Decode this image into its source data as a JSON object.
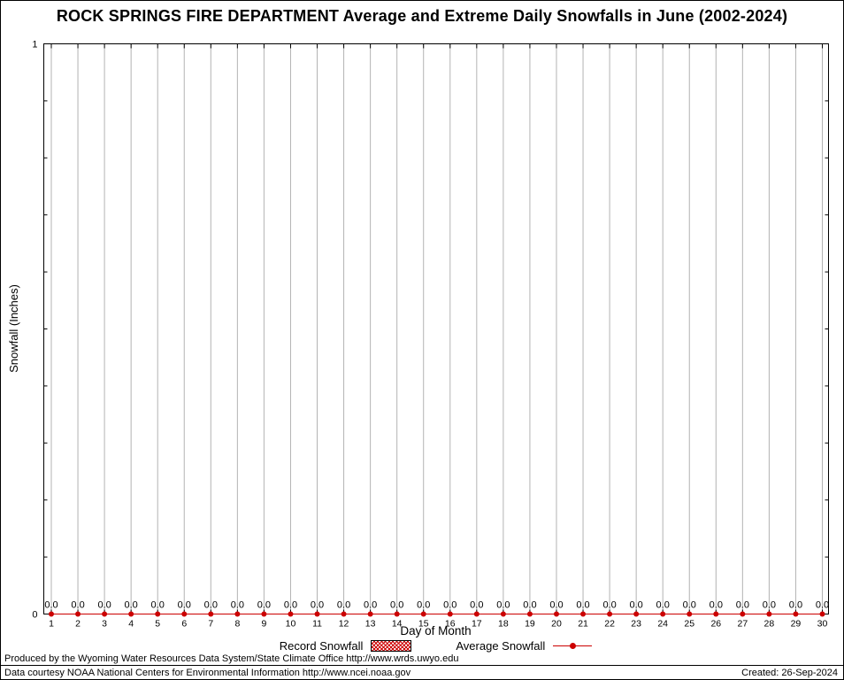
{
  "page": {
    "footer_line1": "Produced by the Wyoming Water Resources Data System/State Climate Office http://www.wrds.uwyo.edu",
    "footer_line2": "Data courtesy NOAA National Centers for Environmental Information http://www.ncei.noaa.gov",
    "created": "Created: 26-Sep-2024"
  },
  "chart_data": {
    "type": "line",
    "title": "ROCK SPRINGS FIRE DEPARTMENT Average and Extreme Daily Snowfalls in June (2002-2024)",
    "xlabel": "Day of Month",
    "ylabel": "Snowfall (Inches)",
    "ylim": [
      0,
      1
    ],
    "yticks": [
      0,
      1
    ],
    "y_minor_tick_step": 0.1,
    "grid": true,
    "legend_position": "bottom-center",
    "categories": [
      1,
      2,
      3,
      4,
      5,
      6,
      7,
      8,
      9,
      10,
      11,
      12,
      13,
      14,
      15,
      16,
      17,
      18,
      19,
      20,
      21,
      22,
      23,
      24,
      25,
      26,
      27,
      28,
      29,
      30
    ],
    "series": [
      {
        "name": "Record Snowfall",
        "style": "hatched-bar",
        "values": [
          0,
          0,
          0,
          0,
          0,
          0,
          0,
          0,
          0,
          0,
          0,
          0,
          0,
          0,
          0,
          0,
          0,
          0,
          0,
          0,
          0,
          0,
          0,
          0,
          0,
          0,
          0,
          0,
          0,
          0
        ]
      },
      {
        "name": "Average Snowfall",
        "style": "line-points",
        "values": [
          0,
          0,
          0,
          0,
          0,
          0,
          0,
          0,
          0,
          0,
          0,
          0,
          0,
          0,
          0,
          0,
          0,
          0,
          0,
          0,
          0,
          0,
          0,
          0,
          0,
          0,
          0,
          0,
          0,
          0
        ]
      }
    ],
    "data_label_format": "0.0 above each day",
    "colors": {
      "series": "#cc0000",
      "grid": "#b3b3b3",
      "axis": "#000000",
      "text": "#000000"
    }
  }
}
